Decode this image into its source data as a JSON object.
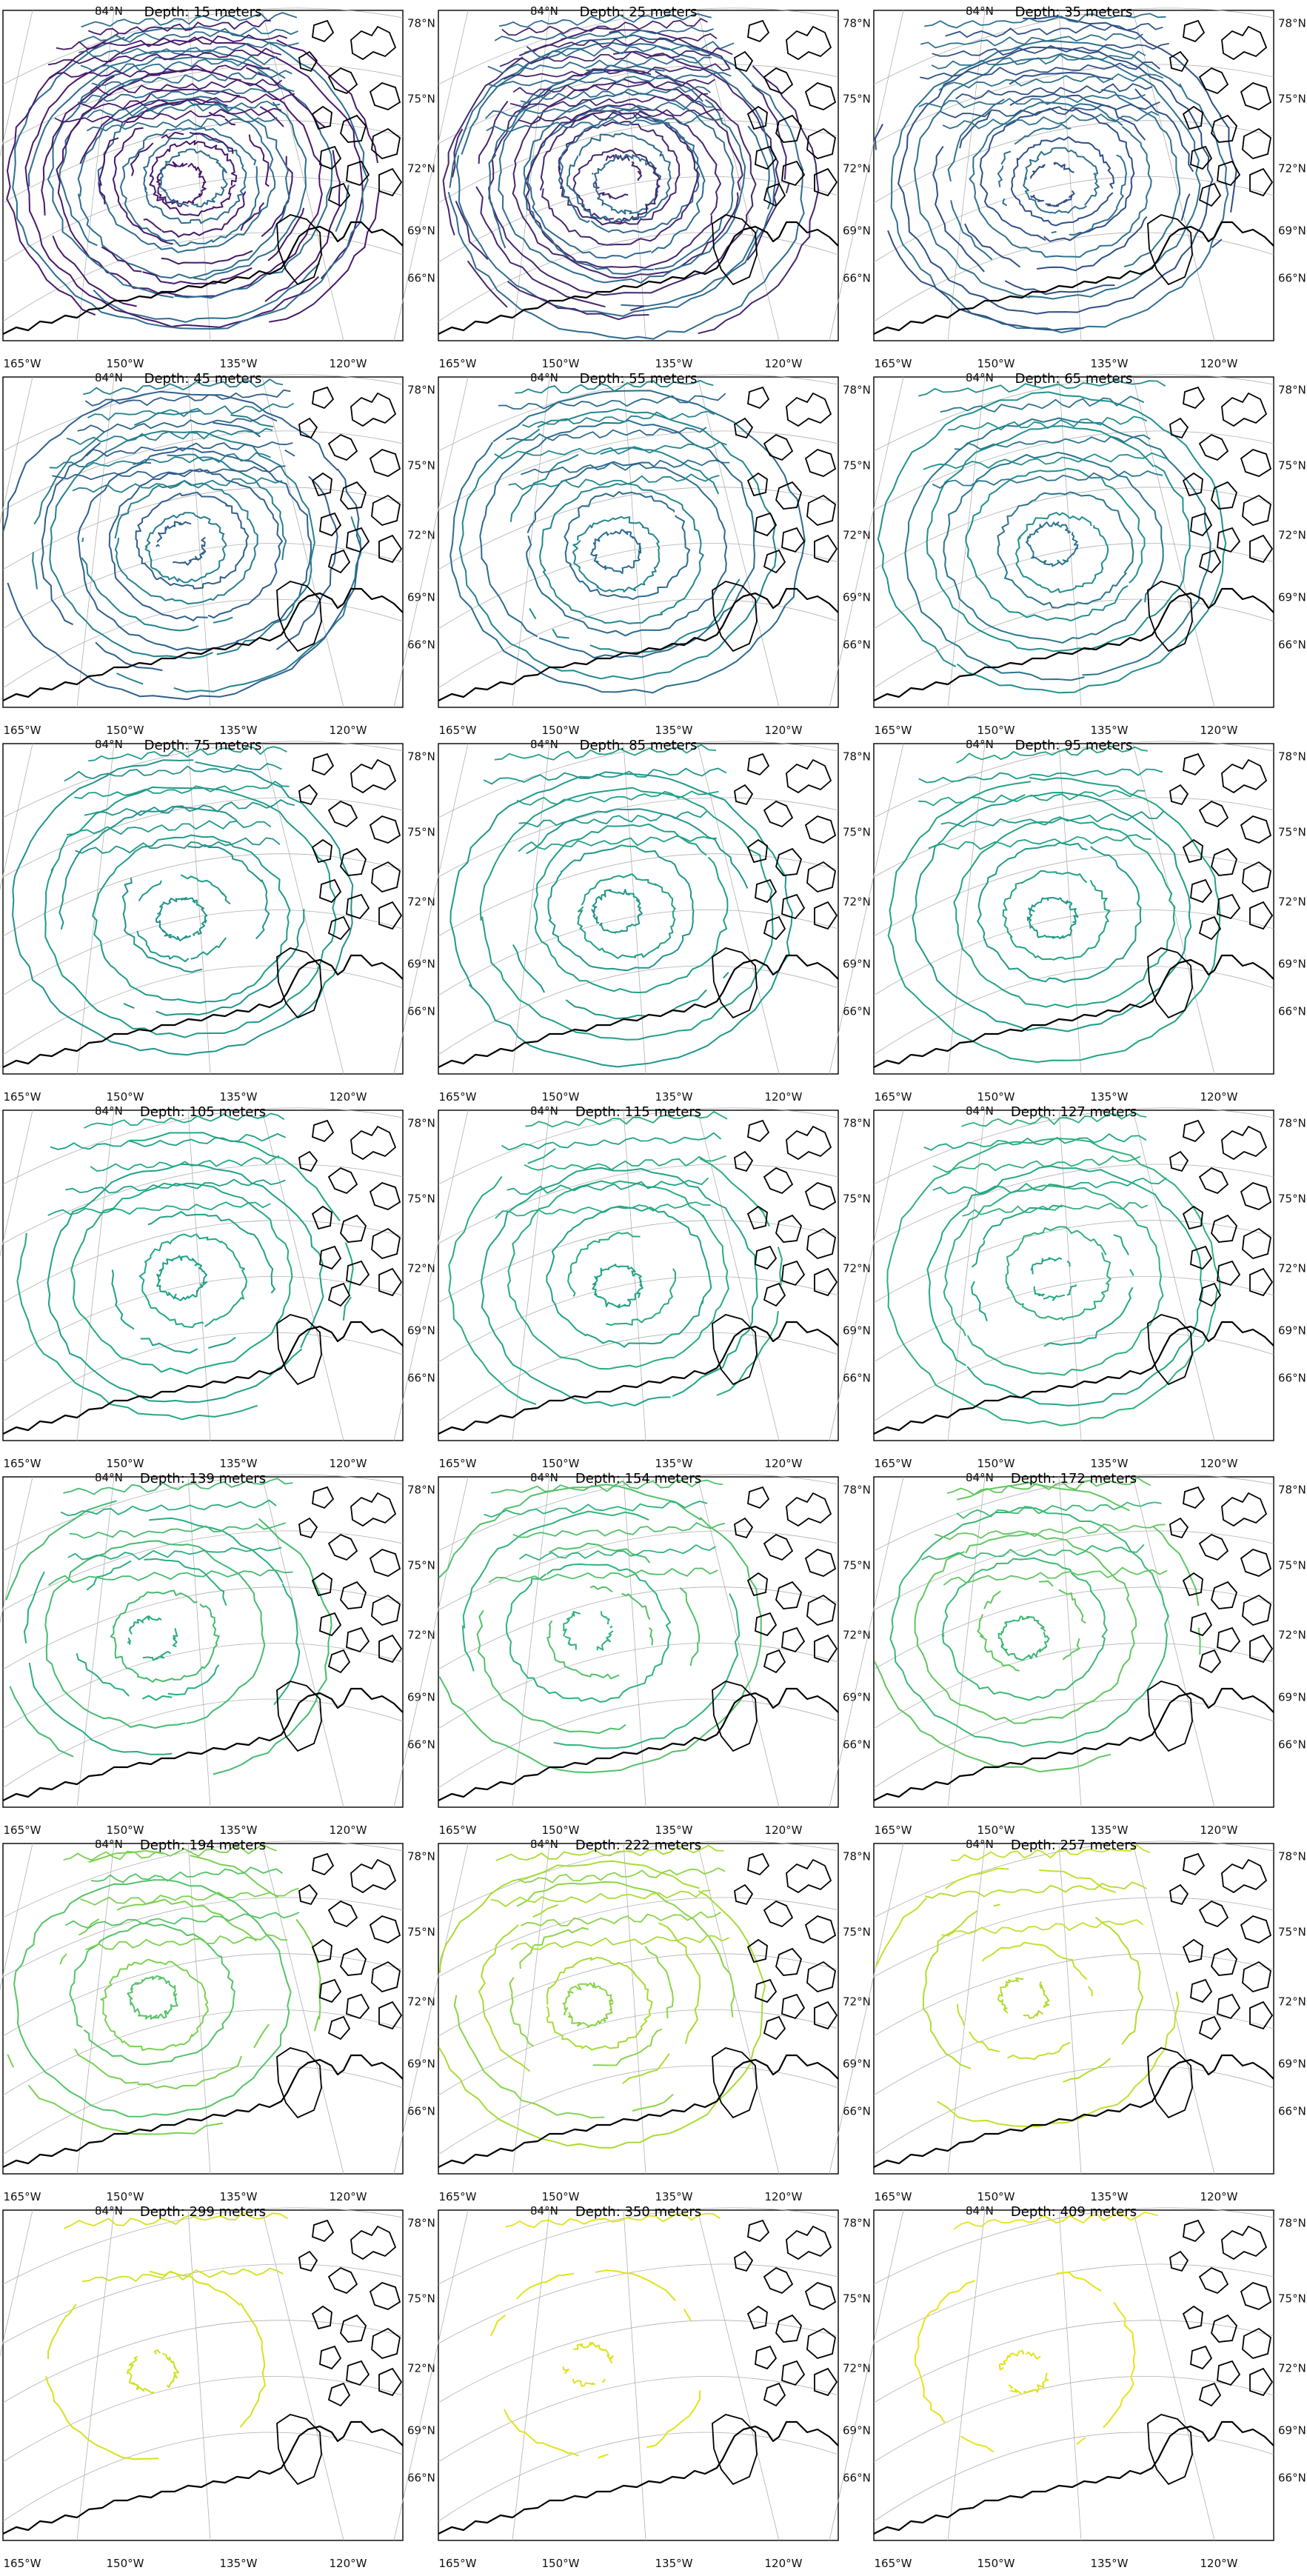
{
  "figure": {
    "panels": [
      {
        "title": "Depth: 15 meters",
        "color": "#46196b",
        "color2": "#2d6d8e",
        "density": 34
      },
      {
        "title": "Depth: 25 meters",
        "color": "#44276f",
        "color2": "#2f6b8e",
        "density": 34
      },
      {
        "title": "Depth: 35 meters",
        "color": "#2f4f86",
        "color2": "#2f728e",
        "density": 24
      },
      {
        "title": "Depth: 45 meters",
        "color": "#2f5f8d",
        "color2": "#25808e",
        "density": 20
      },
      {
        "title": "Depth: 55 meters",
        "color": "#2b6b8e",
        "color2": "#23878d",
        "density": 16
      },
      {
        "title": "Depth: 65 meters",
        "color": "#2a758e",
        "color2": "#20908c",
        "density": 14
      },
      {
        "title": "Depth: 75 meters",
        "color": "#22938b",
        "color2": "#1f9c89",
        "density": 13
      },
      {
        "title": "Depth: 85 meters",
        "color": "#20978b",
        "color2": "#21a086",
        "density": 12
      },
      {
        "title": "Depth: 95 meters",
        "color": "#1f9a8a",
        "color2": "#22a384",
        "density": 11
      },
      {
        "title": "Depth: 105 meters",
        "color": "#1fa088",
        "color2": "#23a884",
        "density": 10
      },
      {
        "title": "Depth: 115 meters",
        "color": "#20a386",
        "color2": "#2aab80",
        "density": 10
      },
      {
        "title": "Depth: 127 meters",
        "color": "#22a785",
        "color2": "#30b07c",
        "density": 10
      },
      {
        "title": "Depth: 139 meters",
        "color": "#29ad80",
        "color2": "#45bb6f",
        "density": 10
      },
      {
        "title": "Depth: 154 meters",
        "color": "#2eb37c",
        "color2": "#52c06a",
        "density": 11
      },
      {
        "title": "Depth: 172 meters",
        "color": "#3bb875",
        "color2": "#62c660",
        "density": 11
      },
      {
        "title": "Depth: 194 meters",
        "color": "#55c368",
        "color2": "#7ad151",
        "density": 10
      },
      {
        "title": "Depth: 222 meters",
        "color": "#8ad449",
        "color2": "#a8db34",
        "density": 11
      },
      {
        "title": "Depth: 257 meters",
        "color": "#b0dd2f",
        "color2": "#c3df2e",
        "density": 7
      },
      {
        "title": "Depth: 299 meters",
        "color": "#cfe11c",
        "color2": "#d6e21b",
        "density": 4
      },
      {
        "title": "Depth: 350 meters",
        "color": "#dde318",
        "color2": "#e0e318",
        "density": 3
      },
      {
        "title": "Depth: 409 meters",
        "color": "#e2e418",
        "color2": "#e5e419",
        "density": 2
      }
    ],
    "axis_labels": {
      "lon": [
        "165°W",
        "150°W",
        "135°W",
        "120°W"
      ],
      "lat": [
        "78°N",
        "75°N",
        "72°N",
        "69°N",
        "66°N"
      ],
      "top": "84°N"
    },
    "coastline_color": "#000000",
    "gridline_color": "#b0b0b0"
  }
}
